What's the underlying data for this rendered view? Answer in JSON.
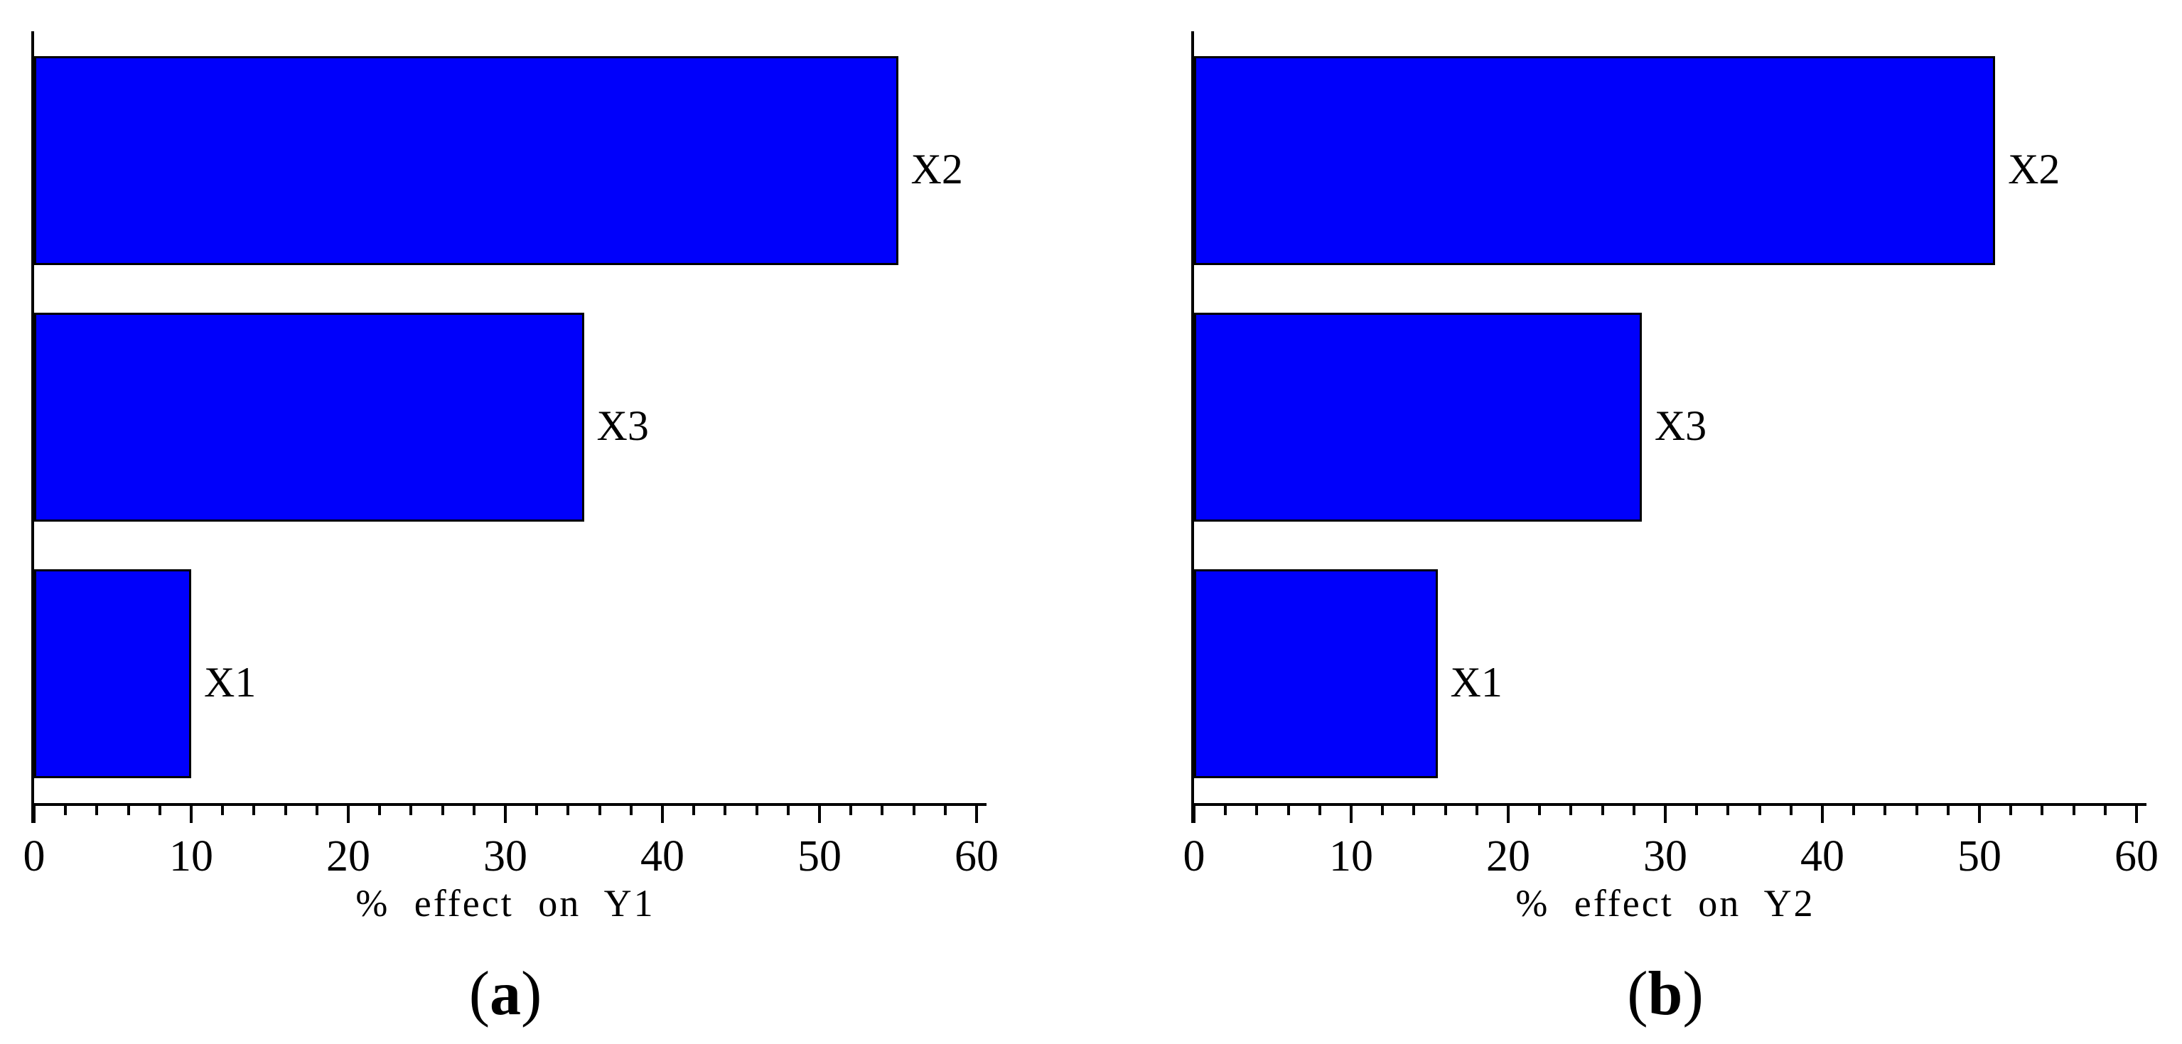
{
  "figure": {
    "background": "#ffffff",
    "bar_fill_color": "#0000fb",
    "bar_border_color": "#000000",
    "axis_color": "#000000",
    "text_color": "#000000"
  },
  "chart_data": [
    {
      "type": "bar",
      "orientation": "horizontal",
      "panel": "a",
      "caption": {
        "open": "(",
        "letter": "a",
        "close": ")"
      },
      "xlabel": "% effect on Y1",
      "categories": [
        "X2",
        "X3",
        "X1"
      ],
      "values": [
        55,
        35,
        10
      ],
      "xlim": [
        0,
        60
      ],
      "x_major_ticks": [
        0,
        10,
        20,
        30,
        40,
        50,
        60
      ],
      "x_minor_tick_step": 2,
      "grid": false,
      "legend": "none",
      "bar_label_position": "right-of-bar"
    },
    {
      "type": "bar",
      "orientation": "horizontal",
      "panel": "b",
      "caption": {
        "open": "(",
        "letter": "b",
        "close": ")"
      },
      "xlabel": "% effect on Y2",
      "categories": [
        "X2",
        "X3",
        "X1"
      ],
      "values": [
        51,
        28.5,
        15.5
      ],
      "xlim": [
        0,
        60
      ],
      "x_major_ticks": [
        0,
        10,
        20,
        30,
        40,
        50,
        60
      ],
      "x_minor_tick_step": 2,
      "grid": false,
      "legend": "none",
      "bar_label_position": "right-of-bar"
    }
  ]
}
